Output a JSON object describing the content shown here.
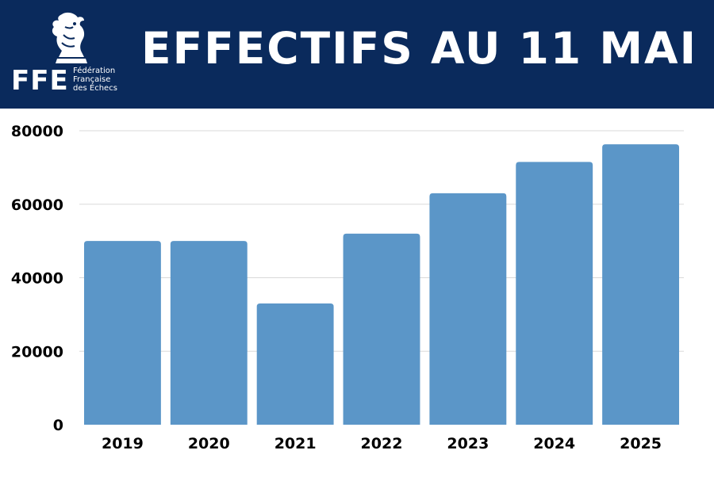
{
  "header": {
    "title": "EFFECTIFS AU 11 MAI",
    "logo_abbr": "FFE",
    "logo_name_lines": [
      "Fédération",
      "Française",
      "des Échecs"
    ]
  },
  "colors": {
    "header_bg": "#0a2a5c",
    "bar": "#5b96c8",
    "grid": "#d9d9d9",
    "text": "#000000"
  },
  "chart_data": {
    "type": "bar",
    "categories": [
      "2019",
      "2020",
      "2021",
      "2022",
      "2023",
      "2024",
      "2025"
    ],
    "values": [
      50000,
      50000,
      33000,
      52000,
      63000,
      71500,
      76300
    ],
    "title": "EFFECTIFS AU 11 MAI",
    "xlabel": "",
    "ylabel": "",
    "ylim": [
      0,
      80000
    ],
    "yticks": [
      0,
      20000,
      40000,
      60000,
      80000
    ],
    "grid": true,
    "legend": "none"
  }
}
